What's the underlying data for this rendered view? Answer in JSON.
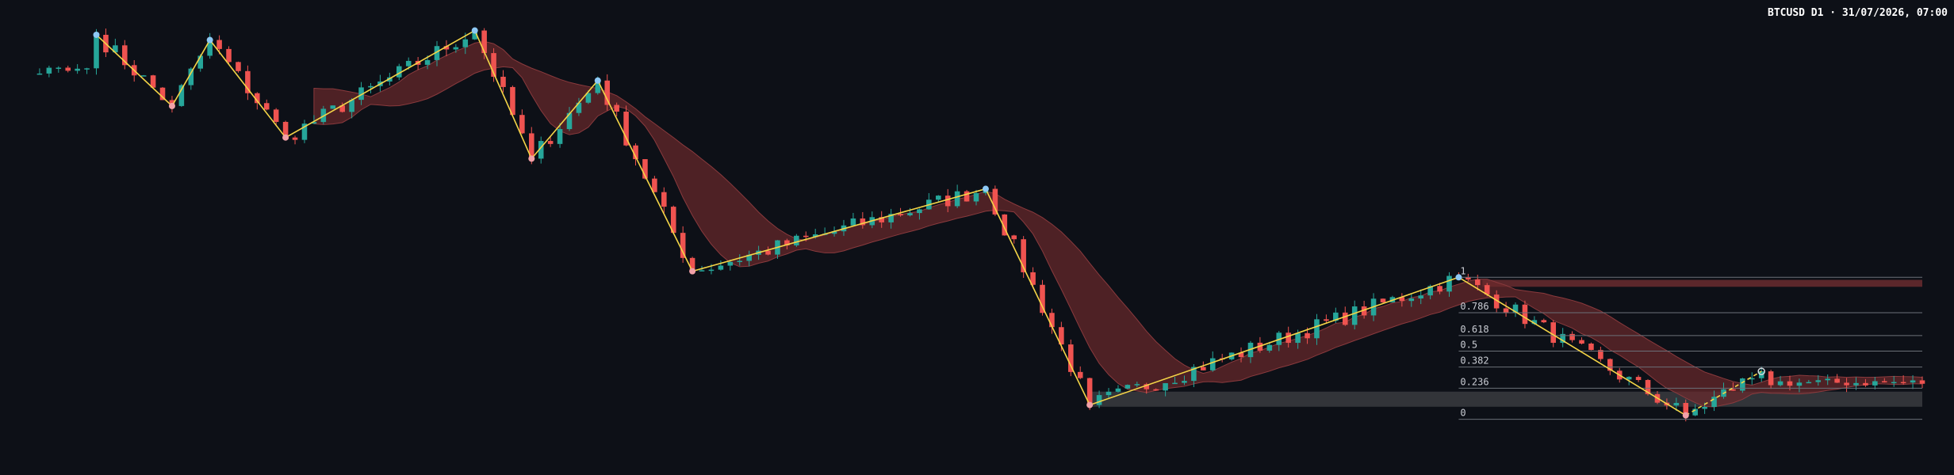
{
  "header": {
    "title": "BTCUSD D1 · 31/07/2026, 07:00"
  },
  "colors": {
    "background": "#0d1017",
    "bull": "#26a69a",
    "bear": "#ef5350",
    "zigzag": "#f5d547",
    "pivot_high": "#8ec9f5",
    "pivot_low": "#f2a1a8",
    "cloud_bear": "#6b2a2c",
    "cloud_bull": "#1f4a49",
    "fib_line": "#6b7078",
    "zone_fill": "#3a3b3f"
  },
  "chart_data": {
    "type": "candlestick",
    "symbol": "BTCUSD",
    "timeframe": "D1",
    "x_range": [
      0,
      200
    ],
    "ylim": [
      0,
      100
    ],
    "y_axis_visible": false,
    "grid": false,
    "zigzag_pivots": [
      {
        "i": 7,
        "p": 95.6,
        "type": "high"
      },
      {
        "i": 15,
        "p": 79.1,
        "type": "low"
      },
      {
        "i": 19,
        "p": 94.4,
        "type": "high"
      },
      {
        "i": 27,
        "p": 71.8,
        "type": "low"
      },
      {
        "i": 47,
        "p": 96.6,
        "type": "high"
      },
      {
        "i": 53,
        "p": 66.9,
        "type": "low"
      },
      {
        "i": 60,
        "p": 85.0,
        "type": "high"
      },
      {
        "i": 70,
        "p": 40.8,
        "type": "low"
      },
      {
        "i": 101,
        "p": 59.9,
        "type": "high"
      },
      {
        "i": 112,
        "p": 9.8,
        "type": "low"
      },
      {
        "i": 151,
        "p": 39.4,
        "type": "high"
      },
      {
        "i": 175,
        "p": 7.4,
        "type": "low"
      },
      {
        "i": 183,
        "p": 17.6,
        "type": "projected-high"
      }
    ],
    "fibonacci": {
      "levels": [
        {
          "label": "1",
          "value": 39.4
        },
        {
          "label": "0.786",
          "value": 31.2
        },
        {
          "label": "0.618",
          "value": 25.9
        },
        {
          "label": "0.5",
          "value": 22.3
        },
        {
          "label": "0.382",
          "value": 18.6
        },
        {
          "label": "0.236",
          "value": 13.7
        },
        {
          "label": "0",
          "value": 6.5
        }
      ],
      "supply_zone": [
        37.2,
        38.8
      ],
      "demand_zone": [
        9.4,
        12.9
      ]
    }
  }
}
